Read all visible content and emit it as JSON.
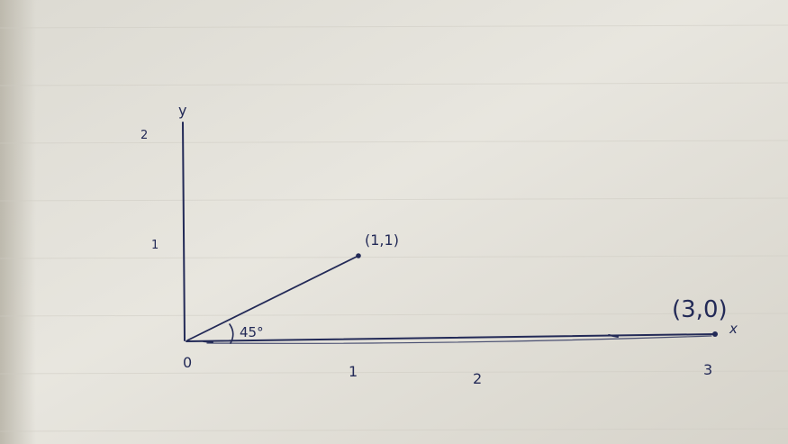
{
  "sketch": {
    "axis_labels": {
      "x": "x",
      "y": "y"
    },
    "x_ticks": [
      "0",
      "1",
      "2",
      "3"
    ],
    "y_ticks": [
      "1",
      "2"
    ],
    "points": [
      {
        "label": "(1,1)",
        "x": 1,
        "y": 1
      },
      {
        "label": "(3,0)",
        "x": 3,
        "y": 0
      }
    ],
    "angle_label": "45°",
    "colors": {
      "ink": "#232a57",
      "paper": "#e6e4dc",
      "paper_shadow": "#c9c6bc"
    }
  }
}
